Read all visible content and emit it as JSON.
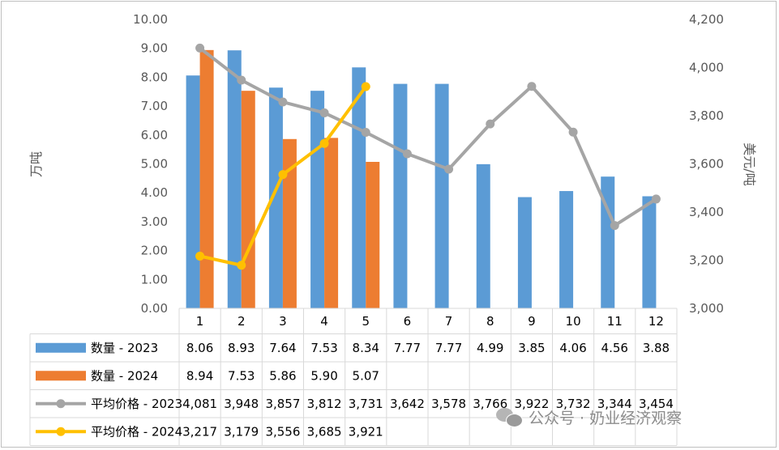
{
  "chart_data": {
    "type": "bar+line",
    "categories": [
      "1",
      "2",
      "3",
      "4",
      "5",
      "6",
      "7",
      "8",
      "9",
      "10",
      "11",
      "12"
    ],
    "left_axis": {
      "label": "万吨",
      "range": [
        0,
        10
      ],
      "ticks": [
        "0.00",
        "1.00",
        "2.00",
        "3.00",
        "4.00",
        "5.00",
        "6.00",
        "7.00",
        "8.00",
        "9.00",
        "10.00"
      ]
    },
    "right_axis": {
      "label": "美元/吨",
      "range": [
        3000,
        4200
      ],
      "ticks": [
        "3,000",
        "3,200",
        "3,400",
        "3,600",
        "3,800",
        "4,000",
        "4,200"
      ]
    },
    "series": [
      {
        "name": "数量 - 2023",
        "type": "bar",
        "axis": "left",
        "color": "#5b9bd5",
        "values": [
          8.06,
          8.93,
          7.64,
          7.53,
          8.34,
          7.77,
          7.77,
          4.99,
          3.85,
          4.06,
          4.56,
          3.88
        ],
        "labels": [
          "8.06",
          "8.93",
          "7.64",
          "7.53",
          "8.34",
          "7.77",
          "7.77",
          "4.99",
          "3.85",
          "4.06",
          "4.56",
          "3.88"
        ]
      },
      {
        "name": "数量 - 2024",
        "type": "bar",
        "axis": "left",
        "color": "#ed7d31",
        "values": [
          8.94,
          7.53,
          5.86,
          5.9,
          5.07,
          null,
          null,
          null,
          null,
          null,
          null,
          null
        ],
        "labels": [
          "8.94",
          "7.53",
          "5.86",
          "5.90",
          "5.07",
          "",
          "",
          "",
          "",
          "",
          "",
          ""
        ]
      },
      {
        "name": "平均价格 - 2023",
        "type": "line",
        "axis": "right",
        "color": "#a5a5a5",
        "values": [
          4081,
          3948,
          3857,
          3812,
          3731,
          3642,
          3578,
          3766,
          3922,
          3732,
          3344,
          3454
        ],
        "labels": [
          "4,081",
          "3,948",
          "3,857",
          "3,812",
          "3,731",
          "3,642",
          "3,578",
          "3,766",
          "3,922",
          "3,732",
          "3,344",
          "3,454"
        ]
      },
      {
        "name": "平均价格 - 2024",
        "type": "line",
        "axis": "right",
        "color": "#ffc000",
        "values": [
          3217,
          3179,
          3556,
          3685,
          3921,
          null,
          null,
          null,
          null,
          null,
          null,
          null
        ],
        "labels": [
          "3,217",
          "3,179",
          "3,556",
          "3,685",
          "3,921",
          "",
          "",
          "",
          "",
          "",
          "",
          ""
        ]
      }
    ],
    "data_table": true,
    "grid": false
  },
  "watermark": {
    "text": "公众号 · 奶业经济观察",
    "icon": "wechat-icon"
  }
}
